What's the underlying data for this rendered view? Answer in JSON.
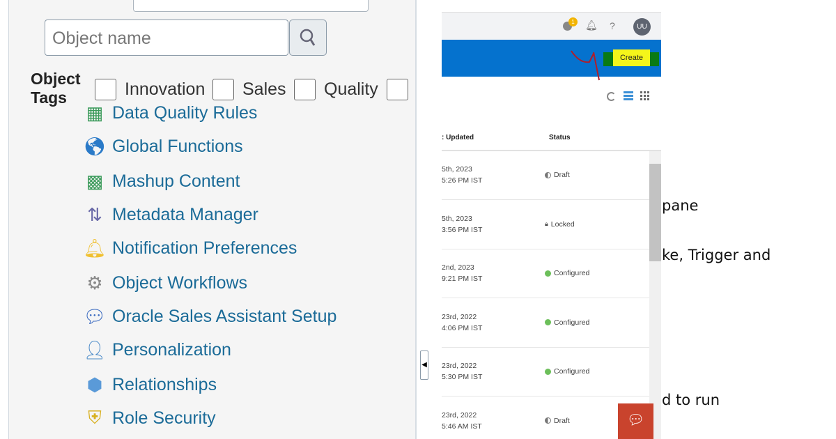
{
  "left_panel": {
    "search_placeholder": "Object name",
    "tags_label_1": "Object",
    "tags_label_2": "Tags",
    "tags": [
      "Innovation",
      "Sales",
      "Quality"
    ],
    "items": [
      {
        "label": "Data Quality Rules",
        "icon": "data-quality-icon"
      },
      {
        "label": "Global Functions",
        "icon": "globe-icon"
      },
      {
        "label": "Mashup Content",
        "icon": "mashup-icon"
      },
      {
        "label": "Metadata Manager",
        "icon": "metadata-arrows-icon"
      },
      {
        "label": "Notification Preferences",
        "icon": "bell-icon"
      },
      {
        "label": "Object Workflows",
        "icon": "gears-icon"
      },
      {
        "label": "Oracle Sales Assistant Setup",
        "icon": "chat-bubbles-icon"
      },
      {
        "label": "Personalization",
        "icon": "user-pencil-icon"
      },
      {
        "label": "Relationships",
        "icon": "cubes-icon"
      },
      {
        "label": "Role Security",
        "icon": "shield-lock-icon"
      }
    ]
  },
  "app": {
    "notification_count": "1",
    "help": "?",
    "avatar": "UU",
    "create_label": "Create",
    "columns": {
      "updated": ": Updated",
      "status": "Status"
    },
    "rows": [
      {
        "d1": "5th, 2023",
        "d2": "5:26 PM IST",
        "status": "Draft"
      },
      {
        "d1": "5th, 2023",
        "d2": "3:56 PM IST",
        "status": "Locked"
      },
      {
        "d1": "2nd, 2023",
        "d2": "9:21 PM IST",
        "status": "Configured"
      },
      {
        "d1": "23rd, 2022",
        "d2": "4:06 PM IST",
        "status": "Configured"
      },
      {
        "d1": "23rd, 2022",
        "d2": "5:30 PM IST",
        "status": "Configured"
      },
      {
        "d1": "23rd, 2022",
        "d2": "5:46 AM IST",
        "status": "Draft"
      }
    ],
    "colors": {
      "brand": "#0572ce",
      "configured": "#6cbf5a",
      "chat": "#c9432d"
    }
  },
  "doc_fragments": [
    "pane",
    "ke, Trigger and",
    "d to run"
  ]
}
